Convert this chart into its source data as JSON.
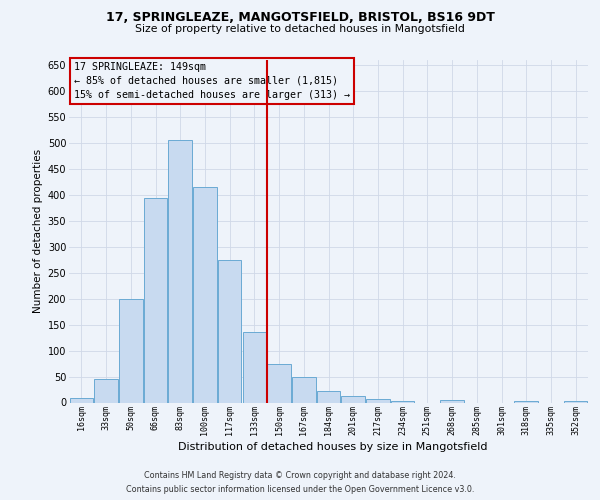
{
  "title1": "17, SPRINGLEAZE, MANGOTSFIELD, BRISTOL, BS16 9DT",
  "title2": "Size of property relative to detached houses in Mangotsfield",
  "xlabel": "Distribution of detached houses by size in Mangotsfield",
  "ylabel": "Number of detached properties",
  "footer1": "Contains HM Land Registry data © Crown copyright and database right 2024.",
  "footer2": "Contains public sector information licensed under the Open Government Licence v3.0.",
  "annotation_line1": "17 SPRINGLEAZE: 149sqm",
  "annotation_line2": "← 85% of detached houses are smaller (1,815)",
  "annotation_line3": "15% of semi-detached houses are larger (313) →",
  "bar_categories": [
    "16sqm",
    "33sqm",
    "50sqm",
    "66sqm",
    "83sqm",
    "100sqm",
    "117sqm",
    "133sqm",
    "150sqm",
    "167sqm",
    "184sqm",
    "201sqm",
    "217sqm",
    "234sqm",
    "251sqm",
    "268sqm",
    "285sqm",
    "301sqm",
    "318sqm",
    "335sqm",
    "352sqm"
  ],
  "bar_values": [
    8,
    45,
    200,
    395,
    505,
    415,
    275,
    135,
    75,
    50,
    22,
    12,
    6,
    3,
    0,
    5,
    0,
    0,
    2,
    0,
    2
  ],
  "bar_color": "#c8daf0",
  "bar_edge_color": "#6aaad4",
  "vline_color": "#cc0000",
  "vline_x": 7.5,
  "annotation_box_edgecolor": "#cc0000",
  "annotation_box_facecolor": "#eef3fa",
  "grid_color": "#d0d8e8",
  "background_color": "#eef3fa",
  "ylim": [
    0,
    660
  ],
  "yticks": [
    0,
    50,
    100,
    150,
    200,
    250,
    300,
    350,
    400,
    450,
    500,
    550,
    600,
    650
  ]
}
